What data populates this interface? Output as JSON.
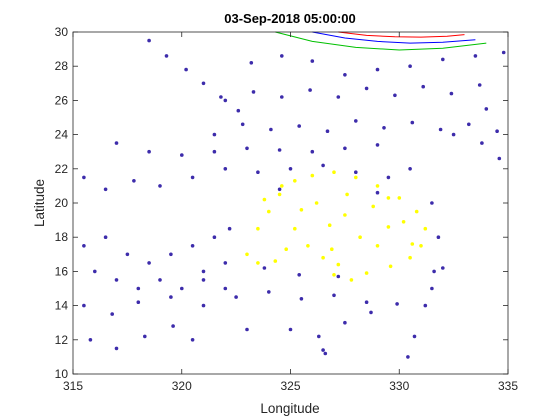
{
  "chart_data": {
    "type": "scatter",
    "title": "03-Sep-2018 05:00:00",
    "xlabel": "Longitude",
    "ylabel": "Latitude",
    "xlim": [
      315,
      335
    ],
    "ylim": [
      10,
      30
    ],
    "xticks": [
      "315",
      "320",
      "325",
      "330",
      "335"
    ],
    "yticks": [
      "10",
      "12",
      "14",
      "16",
      "18",
      "20",
      "22",
      "24",
      "26",
      "28",
      "30"
    ],
    "grid": false,
    "legend": "none",
    "series": [
      {
        "color": "#3d2cab",
        "region": "broad particle field covering most of the domain",
        "sample_points": [
          [
            315.5,
            21.5
          ],
          [
            316.5,
            20.8
          ],
          [
            317.8,
            21.3
          ],
          [
            319,
            21
          ],
          [
            320.5,
            21.5
          ],
          [
            322,
            22
          ],
          [
            323.5,
            21.8
          ],
          [
            325,
            22
          ],
          [
            326.5,
            22.2
          ],
          [
            328,
            21.8
          ],
          [
            329.5,
            21.5
          ],
          [
            315.5,
            14
          ],
          [
            316.8,
            13.5
          ],
          [
            318,
            14.2
          ],
          [
            319.5,
            14.5
          ],
          [
            321,
            14
          ],
          [
            322.5,
            14.5
          ],
          [
            324,
            14.8
          ],
          [
            325.5,
            14.4
          ],
          [
            327,
            14.6
          ],
          [
            328.5,
            14.2
          ],
          [
            315.8,
            12
          ],
          [
            317,
            11.5
          ],
          [
            318.3,
            12.2
          ],
          [
            319.6,
            12.8
          ],
          [
            320.5,
            12
          ],
          [
            323,
            12.6
          ],
          [
            325,
            12.6
          ],
          [
            326.5,
            11.4
          ],
          [
            315.5,
            17.5
          ],
          [
            316.5,
            18
          ],
          [
            317.5,
            17
          ],
          [
            318.5,
            16.5
          ],
          [
            319.5,
            17
          ],
          [
            320.5,
            17.5
          ],
          [
            321.5,
            18
          ],
          [
            322.2,
            18.5
          ],
          [
            322,
            16.5
          ],
          [
            321,
            16
          ],
          [
            316,
            16
          ],
          [
            317,
            15.5
          ],
          [
            318,
            15
          ],
          [
            319,
            15.5
          ],
          [
            320,
            15
          ],
          [
            321,
            15.5
          ],
          [
            322,
            15
          ],
          [
            323.8,
            16.2
          ],
          [
            325.4,
            15.8
          ],
          [
            327.2,
            15.7
          ],
          [
            321.5,
            24
          ],
          [
            322.8,
            24.6
          ],
          [
            324.1,
            24.3
          ],
          [
            325.4,
            24.5
          ],
          [
            326.7,
            24.2
          ],
          [
            328,
            24.8
          ],
          [
            329.3,
            24.4
          ],
          [
            330.6,
            24.7
          ],
          [
            331.9,
            24.3
          ],
          [
            333.2,
            24.6
          ],
          [
            334.5,
            24.2
          ],
          [
            322,
            26
          ],
          [
            323.3,
            26.5
          ],
          [
            324.6,
            26.2
          ],
          [
            325.9,
            26.6
          ],
          [
            327.2,
            26.2
          ],
          [
            328.5,
            26.7
          ],
          [
            329.8,
            26.3
          ],
          [
            331.1,
            26.8
          ],
          [
            332.4,
            26.4
          ],
          [
            333.7,
            26.9
          ],
          [
            318.5,
            29.5
          ],
          [
            319.3,
            28.6
          ],
          [
            320.2,
            27.8
          ],
          [
            321,
            27
          ],
          [
            321.8,
            26.2
          ],
          [
            322.6,
            25.4
          ],
          [
            323.2,
            28.2
          ],
          [
            324.6,
            28.6
          ],
          [
            326,
            28.3
          ],
          [
            327.5,
            27.5
          ],
          [
            329,
            27.8
          ],
          [
            330.5,
            28
          ],
          [
            332,
            28.4
          ],
          [
            333.5,
            28.6
          ],
          [
            334.8,
            28.8
          ],
          [
            317,
            23.5
          ],
          [
            318.5,
            23
          ],
          [
            320,
            22.8
          ],
          [
            321.5,
            23
          ],
          [
            323,
            23.2
          ],
          [
            324.5,
            23.1
          ],
          [
            326,
            23
          ],
          [
            327.5,
            23.2
          ],
          [
            329,
            23.4
          ],
          [
            330.5,
            22
          ],
          [
            331.5,
            20
          ],
          [
            331.8,
            18
          ],
          [
            331.6,
            16
          ],
          [
            331.2,
            14
          ],
          [
            330.7,
            12.2
          ],
          [
            330.4,
            11
          ],
          [
            332.5,
            24
          ],
          [
            333.8,
            23.5
          ],
          [
            334.6,
            22.6
          ],
          [
            334,
            25.5
          ],
          [
            326.3,
            12.2
          ],
          [
            326.6,
            11.2
          ],
          [
            327.5,
            13
          ],
          [
            328.7,
            13.6
          ],
          [
            329.9,
            14.1
          ],
          [
            331.5,
            15
          ],
          [
            332,
            16.2
          ],
          [
            329,
            20.6
          ],
          [
            324.5,
            20.8
          ]
        ]
      },
      {
        "color": "#ffff00",
        "region": "inner patch bounded roughly by lon 322.5-331.5, lat 15.5-22",
        "sample_points": [
          [
            323,
            17
          ],
          [
            323.5,
            18.5
          ],
          [
            324,
            19.5
          ],
          [
            324.5,
            20.5
          ],
          [
            325.2,
            21.3
          ],
          [
            326,
            21.6
          ],
          [
            327,
            21.8
          ],
          [
            328,
            21.5
          ],
          [
            329,
            21
          ],
          [
            330,
            20.3
          ],
          [
            330.8,
            19.5
          ],
          [
            331.2,
            18.5
          ],
          [
            331,
            17.5
          ],
          [
            330.5,
            16.8
          ],
          [
            329.6,
            16.3
          ],
          [
            328.5,
            15.9
          ],
          [
            327.8,
            15.5
          ],
          [
            327,
            15.8
          ],
          [
            326.5,
            16.8
          ],
          [
            325.8,
            17.5
          ],
          [
            325.2,
            18.5
          ],
          [
            324.8,
            17.3
          ],
          [
            324.3,
            16.6
          ],
          [
            323.5,
            16.5
          ],
          [
            326.8,
            18.7
          ],
          [
            327.5,
            19.3
          ],
          [
            328.2,
            18
          ],
          [
            329,
            17.5
          ],
          [
            329.5,
            18.6
          ],
          [
            330.2,
            18.9
          ],
          [
            328.8,
            19.8
          ],
          [
            327.6,
            20.5
          ],
          [
            326.2,
            20
          ],
          [
            325.5,
            19.6
          ],
          [
            323.8,
            20.2
          ],
          [
            324.6,
            21
          ],
          [
            329.5,
            20.3
          ],
          [
            330.6,
            17.6
          ],
          [
            326.9,
            17.3
          ],
          [
            327.2,
            16.4
          ]
        ]
      }
    ],
    "trajectories": [
      {
        "color": "#ff0000",
        "x": [
          327.2,
          328.5,
          329.8,
          331,
          332.2,
          333
        ],
        "y": [
          30,
          29.8,
          29.72,
          29.7,
          29.75,
          29.85
        ]
      },
      {
        "color": "#0000ff",
        "x": [
          326,
          327.5,
          329,
          330.5,
          332,
          333.5
        ],
        "y": [
          30,
          29.65,
          29.45,
          29.35,
          29.4,
          29.55
        ]
      },
      {
        "color": "#00c000",
        "x": [
          324.3,
          326,
          328,
          330,
          332,
          334
        ],
        "y": [
          30,
          29.45,
          29.1,
          28.95,
          29.05,
          29.35
        ]
      }
    ]
  }
}
